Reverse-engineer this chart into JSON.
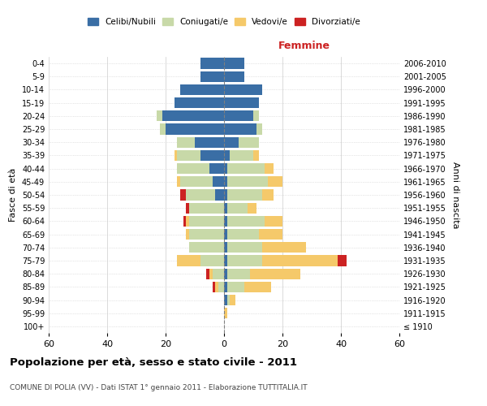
{
  "age_groups": [
    "100+",
    "95-99",
    "90-94",
    "85-89",
    "80-84",
    "75-79",
    "70-74",
    "65-69",
    "60-64",
    "55-59",
    "50-54",
    "45-49",
    "40-44",
    "35-39",
    "30-34",
    "25-29",
    "20-24",
    "15-19",
    "10-14",
    "5-9",
    "0-4"
  ],
  "birth_years": [
    "≤ 1910",
    "1911-1915",
    "1916-1920",
    "1921-1925",
    "1926-1930",
    "1931-1935",
    "1936-1940",
    "1941-1945",
    "1946-1950",
    "1951-1955",
    "1956-1960",
    "1961-1965",
    "1966-1970",
    "1971-1975",
    "1976-1980",
    "1981-1985",
    "1986-1990",
    "1991-1995",
    "1996-2000",
    "2001-2005",
    "2006-2010"
  ],
  "males": {
    "celibi": [
      0,
      0,
      0,
      0,
      0,
      0,
      0,
      0,
      0,
      0,
      3,
      4,
      5,
      8,
      10,
      20,
      21,
      17,
      15,
      8,
      8
    ],
    "coniugati": [
      0,
      0,
      0,
      2,
      4,
      8,
      12,
      12,
      12,
      12,
      10,
      11,
      11,
      8,
      6,
      2,
      2,
      0,
      0,
      0,
      0
    ],
    "vedovi": [
      0,
      0,
      0,
      1,
      1,
      8,
      0,
      1,
      1,
      0,
      0,
      1,
      0,
      1,
      0,
      0,
      0,
      0,
      0,
      0,
      0
    ],
    "divorziati": [
      0,
      0,
      0,
      1,
      1,
      0,
      0,
      0,
      1,
      1,
      2,
      0,
      0,
      0,
      0,
      0,
      0,
      0,
      0,
      0,
      0
    ]
  },
  "females": {
    "nubili": [
      0,
      0,
      1,
      1,
      1,
      1,
      1,
      1,
      1,
      1,
      1,
      1,
      1,
      2,
      5,
      11,
      10,
      12,
      13,
      7,
      7
    ],
    "coniugate": [
      0,
      0,
      1,
      6,
      8,
      12,
      12,
      11,
      13,
      7,
      12,
      14,
      13,
      8,
      7,
      2,
      2,
      0,
      0,
      0,
      0
    ],
    "vedove": [
      0,
      1,
      2,
      9,
      17,
      26,
      15,
      8,
      6,
      3,
      4,
      5,
      3,
      2,
      0,
      0,
      0,
      0,
      0,
      0,
      0
    ],
    "divorziate": [
      0,
      0,
      0,
      0,
      0,
      3,
      0,
      0,
      0,
      0,
      0,
      0,
      0,
      0,
      0,
      0,
      0,
      0,
      0,
      0,
      0
    ]
  },
  "colors": {
    "celibi": "#3A6EA5",
    "coniugati": "#C8D9A8",
    "vedovi": "#F5C96A",
    "divorziati": "#CC2222"
  },
  "xlim": 60,
  "title": "Popolazione per età, sesso e stato civile - 2011",
  "subtitle": "COMUNE DI POLIA (VV) - Dati ISTAT 1° gennaio 2011 - Elaborazione TUTTITALIA.IT",
  "ylabel_left": "Fasce di età",
  "ylabel_right": "Anni di nascita",
  "xlabel_right": "Femmine"
}
